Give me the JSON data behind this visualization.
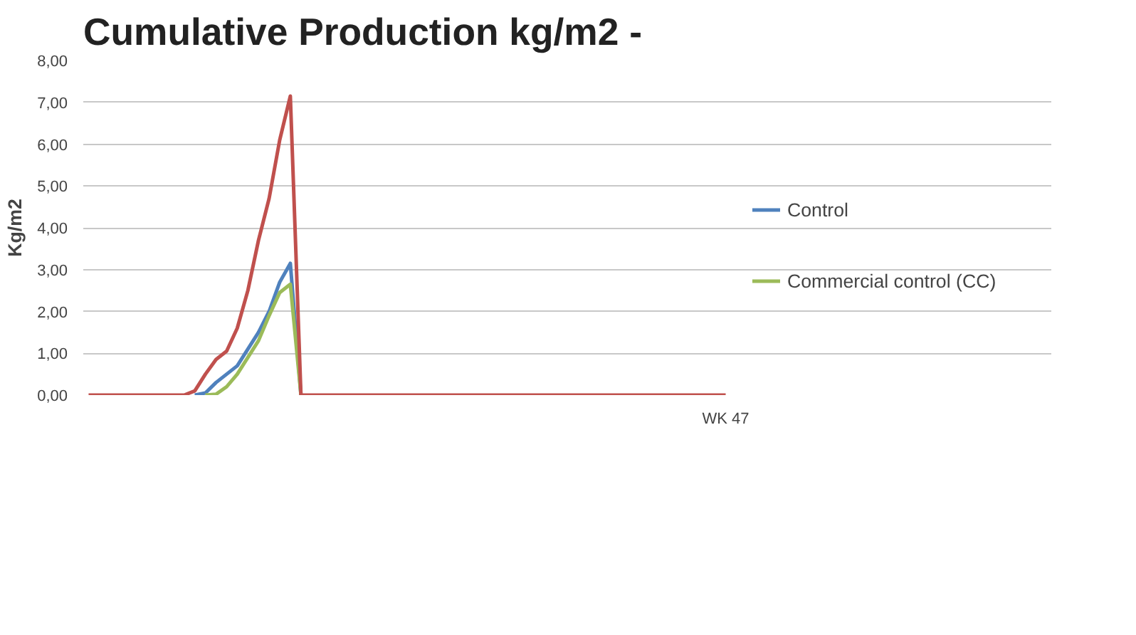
{
  "chart_data": {
    "type": "line",
    "title": "Cumulative Production kg/m2 -",
    "ylabel": "Kg/m2",
    "categories": [
      null,
      null,
      null,
      null,
      null,
      null,
      null,
      null,
      null,
      null,
      null,
      null,
      null,
      null,
      null,
      null,
      null,
      null,
      null,
      null,
      null,
      null,
      null,
      null,
      null,
      null,
      null,
      null,
      null,
      null,
      null,
      null,
      null,
      null,
      null,
      null,
      null,
      null,
      null,
      null,
      null,
      null,
      null,
      null,
      null,
      null,
      null,
      null,
      null,
      null,
      null,
      null,
      null,
      null,
      null,
      null,
      null,
      null,
      null,
      null,
      "WK 47"
    ],
    "series": [
      {
        "name": "Control",
        "color": "#4f81bd",
        "values": [
          null,
          null,
          null,
          null,
          null,
          null,
          null,
          null,
          null,
          null,
          0,
          0.05,
          0.3,
          0.5,
          0.7,
          1.1,
          1.5,
          2.0,
          2.7,
          3.15,
          0,
          null,
          null,
          null,
          null,
          null,
          null,
          null,
          null,
          null,
          null,
          null,
          null,
          null,
          null,
          null,
          null,
          null,
          null,
          null,
          null,
          null,
          null,
          null,
          null,
          null,
          null,
          null,
          null,
          null,
          null,
          null,
          null,
          null,
          null,
          null,
          null,
          null,
          null,
          null,
          null
        ]
      },
      {
        "name": "Commercial control (CC)",
        "color": "#9bbb59",
        "values": [
          null,
          null,
          null,
          null,
          null,
          null,
          null,
          null,
          null,
          null,
          null,
          0,
          0.02,
          0.2,
          0.5,
          0.9,
          1.3,
          1.9,
          2.45,
          2.65,
          0,
          null,
          null,
          null,
          null,
          null,
          null,
          null,
          null,
          null,
          null,
          null,
          null,
          null,
          null,
          null,
          null,
          null,
          null,
          null,
          null,
          null,
          null,
          null,
          null,
          null,
          null,
          null,
          null,
          null,
          null,
          null,
          null,
          null,
          null,
          null,
          null,
          null,
          null,
          null,
          null
        ]
      },
      {
        "color": "#c0504d",
        "values": [
          0,
          0,
          0,
          0,
          0,
          0,
          0,
          0,
          0,
          0,
          0.1,
          0.5,
          0.85,
          1.05,
          1.6,
          2.5,
          3.7,
          4.7,
          6.1,
          7.15,
          0,
          0,
          0,
          0,
          0,
          0,
          0,
          0,
          0,
          0,
          0,
          0,
          0,
          0,
          0,
          0,
          0,
          0,
          0,
          0,
          0,
          0,
          0,
          0,
          0,
          0,
          0,
          0,
          0,
          0,
          0,
          0,
          0,
          0,
          0,
          0,
          0,
          0,
          0,
          0,
          0
        ]
      }
    ],
    "ylim": [
      0,
      8
    ],
    "yticks": [
      {
        "value": 0,
        "label": "0,00"
      },
      {
        "value": 1,
        "label": "1,00"
      },
      {
        "value": 2,
        "label": "2,00"
      },
      {
        "value": 3,
        "label": "3,00"
      },
      {
        "value": 4,
        "label": "4,00"
      },
      {
        "value": 5,
        "label": "5,00"
      },
      {
        "value": 6,
        "label": "6,00"
      },
      {
        "value": 7,
        "label": "7,00"
      },
      {
        "value": 8,
        "label": "8,00"
      }
    ],
    "grid": "y",
    "legend": "right",
    "marker": "none",
    "line_style": "solid"
  }
}
